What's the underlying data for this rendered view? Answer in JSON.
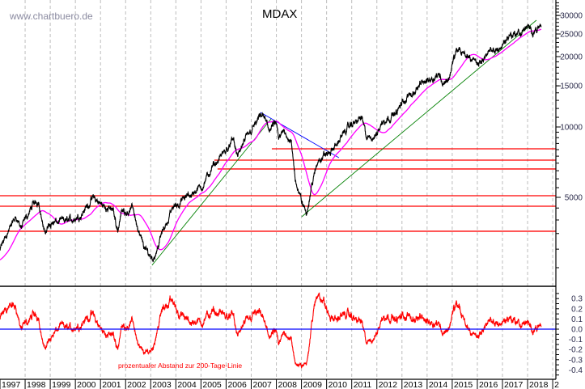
{
  "chart_data": {
    "type": "line",
    "title": "MDAX",
    "watermark": "www.chartbuero.de",
    "y_scale": "log",
    "ylim": [
      2100,
      34900
    ],
    "xlim": [
      1997,
      2019.1
    ],
    "grid": "vertical dashed at each year",
    "y_ticks": [
      5000,
      10000,
      15000,
      20000,
      25000,
      30000
    ],
    "x_ticks": [
      "1997",
      "1998",
      "1999",
      "2000",
      "2001",
      "2002",
      "2003",
      "2004",
      "2005",
      "2006",
      "2007",
      "2008",
      "2009",
      "2010",
      "2011",
      "2012",
      "2013",
      "2014",
      "2015",
      "2016",
      "2017",
      "2018",
      "2"
    ],
    "colors": {
      "price": "#000000",
      "ma200": "#ff00ff",
      "levels": "#ff0000",
      "downtrend": "#0000ff",
      "uptrend": "#008000",
      "deviation": "#ff0000",
      "zero_line": "#0000ff"
    },
    "series": [
      {
        "key": "price",
        "points": [
          [
            1997.0,
            2960
          ],
          [
            1997.26,
            3470
          ],
          [
            1997.64,
            4130
          ],
          [
            1997.85,
            3700
          ],
          [
            1998.29,
            4580
          ],
          [
            1998.54,
            4890
          ],
          [
            1998.77,
            3470
          ],
          [
            1999.0,
            3900
          ],
          [
            1999.41,
            3910
          ],
          [
            1999.8,
            4000
          ],
          [
            2000.22,
            4230
          ],
          [
            2000.7,
            4960
          ],
          [
            2001.12,
            4580
          ],
          [
            2001.5,
            4400
          ],
          [
            2001.69,
            3610
          ],
          [
            2001.82,
            4330
          ],
          [
            2002.31,
            4480
          ],
          [
            2002.53,
            3470
          ],
          [
            2002.79,
            2960
          ],
          [
            2003.11,
            2730
          ],
          [
            2003.43,
            3470
          ],
          [
            2003.91,
            4580
          ],
          [
            2004.4,
            4960
          ],
          [
            2005.04,
            5590
          ],
          [
            2005.52,
            6830
          ],
          [
            2006.3,
            8800
          ],
          [
            2006.45,
            7400
          ],
          [
            2006.65,
            8300
          ],
          [
            2007.13,
            10160
          ],
          [
            2007.45,
            11270
          ],
          [
            2007.71,
            9760
          ],
          [
            2008.0,
            10320
          ],
          [
            2008.09,
            8660
          ],
          [
            2008.32,
            9760
          ],
          [
            2008.58,
            8660
          ],
          [
            2008.75,
            6050
          ],
          [
            2008.9,
            5160
          ],
          [
            2009.2,
            4250
          ],
          [
            2009.38,
            5500
          ],
          [
            2009.7,
            7390
          ],
          [
            2010.18,
            7800
          ],
          [
            2010.83,
            9900
          ],
          [
            2011.41,
            11000
          ],
          [
            2011.6,
            8800
          ],
          [
            2011.95,
            9200
          ],
          [
            2012.27,
            10740
          ],
          [
            2012.76,
            11450
          ],
          [
            2013.08,
            12900
          ],
          [
            2013.72,
            15130
          ],
          [
            2014.2,
            16390
          ],
          [
            2014.52,
            16790
          ],
          [
            2014.62,
            15400
          ],
          [
            2014.85,
            16000
          ],
          [
            2015.17,
            21320
          ],
          [
            2015.65,
            20000
          ],
          [
            2016.1,
            18500
          ],
          [
            2016.29,
            20320
          ],
          [
            2016.61,
            20800
          ],
          [
            2016.94,
            22000
          ],
          [
            2017.32,
            25000
          ],
          [
            2017.74,
            25200
          ],
          [
            2017.97,
            27080
          ],
          [
            2018.15,
            25300
          ],
          [
            2018.29,
            26230
          ],
          [
            2018.54,
            26860
          ]
        ]
      },
      {
        "key": "ma200",
        "derived": "200-day moving average of price"
      }
    ],
    "horizontal_levels": [
      {
        "value": 8065,
        "from": 2007.82
      },
      {
        "value": 7215,
        "from": 2005.53
      },
      {
        "value": 6610,
        "from": 2005.66
      },
      {
        "value": 5080,
        "from": 1997.0
      },
      {
        "value": 4580,
        "from": 1997.0
      },
      {
        "value": 3580,
        "from": 1997.0
      }
    ],
    "trendlines": [
      {
        "color": "downtrend",
        "from": [
          2007.37,
          11540
        ],
        "to": [
          2010.49,
          7390
        ]
      },
      {
        "color": "uptrend",
        "from": [
          2003.05,
          2560
        ],
        "to": [
          2007.79,
          10830
        ]
      },
      {
        "color": "uptrend",
        "from": [
          2009.01,
          4130
        ],
        "to": [
          2018.35,
          28620
        ]
      }
    ],
    "lower_panel": {
      "caption": "prozentualer Abstand zur 200-Tage-Linie",
      "ylim": [
        -0.47,
        0.38
      ],
      "y_ticks": [
        "0.3",
        "0.2",
        "0.1",
        "0.0",
        "-0.1",
        "-0.2",
        "-0.3",
        "-0.4"
      ],
      "zero_line": 0.0
    }
  }
}
